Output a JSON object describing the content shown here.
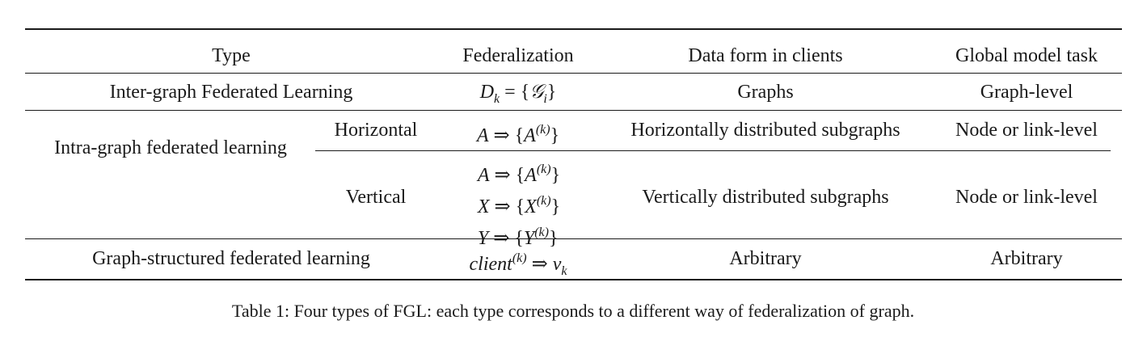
{
  "table": {
    "headers": [
      "Type",
      "Federalization",
      "Data form in clients",
      "Global model task"
    ],
    "rows": [
      {
        "type": "Inter-graph Federated Learning",
        "subtype": "",
        "federalization": "D_k = {𝒢_i}",
        "data_form": "Graphs",
        "task": "Graph-level"
      },
      {
        "type": "Intra-graph federated learning",
        "subtype": "Horizontal",
        "federalization": "A ⇒ {A^(k)}",
        "data_form": "Horizontally distributed subgraphs",
        "task": "Node or link-level"
      },
      {
        "type": "Intra-graph federated learning",
        "subtype": "Vertical",
        "federalization": "A ⇒ {A^(k)}; X ⇒ {X^(k)}; Y ⇒ {Y^(k)}",
        "data_form": "Vertically distributed subgraphs",
        "task": "Node or link-level"
      },
      {
        "type": "Graph-structured federated learning",
        "subtype": "",
        "federalization": "client^(k) ⇒ v_k",
        "data_form": "Arbitrary",
        "task": "Arbitrary"
      }
    ]
  },
  "caption": "Table 1: Four types of FGL: each type corresponds to a different way of federalization of graph."
}
